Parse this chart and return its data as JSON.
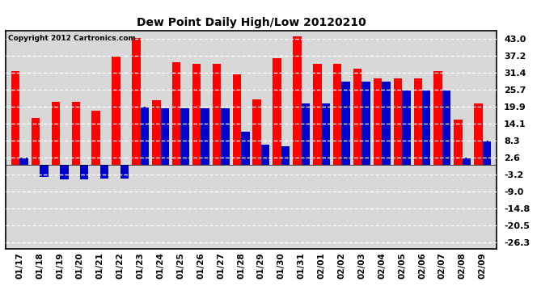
{
  "title": "Dew Point Daily High/Low 20120210",
  "copyright": "Copyright 2012 Cartronics.com",
  "dates": [
    "01/17",
    "01/18",
    "01/19",
    "01/20",
    "01/21",
    "01/22",
    "01/23",
    "01/24",
    "01/25",
    "01/26",
    "01/27",
    "01/28",
    "01/29",
    "01/30",
    "01/31",
    "02/01",
    "02/02",
    "02/03",
    "02/04",
    "02/05",
    "02/06",
    "02/07",
    "02/08",
    "02/09"
  ],
  "highs": [
    32.0,
    16.0,
    21.5,
    21.5,
    18.5,
    37.0,
    43.5,
    22.0,
    35.0,
    34.5,
    34.5,
    31.0,
    22.5,
    36.5,
    44.0,
    34.5,
    34.5,
    33.0,
    29.5,
    29.5,
    29.5,
    32.0,
    15.5,
    21.0
  ],
  "lows": [
    2.6,
    -4.0,
    -5.0,
    -5.0,
    -4.5,
    -4.5,
    20.0,
    19.5,
    19.5,
    19.5,
    19.5,
    11.5,
    7.0,
    6.5,
    21.0,
    21.0,
    28.5,
    28.5,
    28.5,
    25.5,
    25.5,
    25.5,
    2.6,
    8.3
  ],
  "high_color": "#ff0000",
  "low_color": "#0000cc",
  "bg_color": "#ffffff",
  "plot_bg": "#d8d8d8",
  "grid_color": "#ffffff",
  "yticks": [
    43.0,
    37.2,
    31.4,
    25.7,
    19.9,
    14.1,
    8.3,
    2.6,
    -3.2,
    -9.0,
    -14.8,
    -20.5,
    -26.3
  ],
  "ylim": [
    -28.5,
    46.0
  ],
  "bar_width": 0.42
}
